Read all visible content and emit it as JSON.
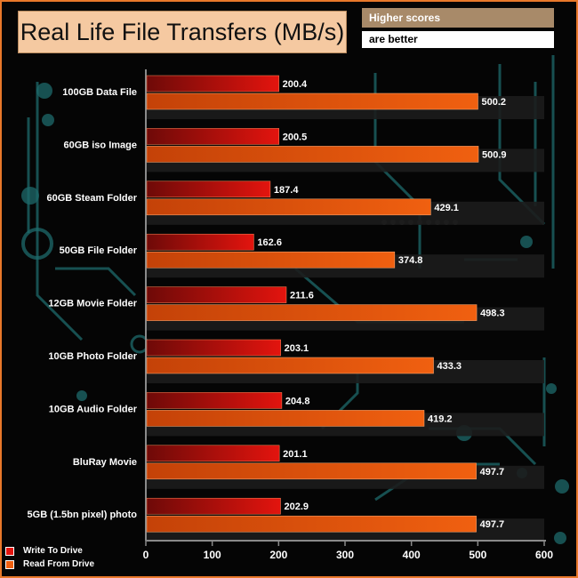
{
  "header": {
    "title": "Real Life File Transfers (MB/s)",
    "note_line1": "Higher scores",
    "note_line2": "are better"
  },
  "colors": {
    "write": "#e3140e",
    "read": "#f06010",
    "frame": "#e8782a",
    "circuit": "#1f6f70"
  },
  "chart_data": {
    "type": "bar",
    "orientation": "horizontal",
    "title": "Real Life File Transfers (MB/s)",
    "categories": [
      "100GB Data File",
      "60GB iso Image",
      "60GB Steam Folder",
      "50GB File Folder",
      "12GB Movie Folder",
      "10GB Photo Folder",
      "10GB Audio Folder",
      "BluRay Movie",
      "5GB (1.5bn pixel) photo"
    ],
    "series": [
      {
        "name": "Write To  Drive",
        "values": [
          200.4,
          200.5,
          187.4,
          162.6,
          211.6,
          203.1,
          204.8,
          201.1,
          202.9
        ]
      },
      {
        "name": "Read From  Drive",
        "values": [
          500.2,
          500.9,
          429.1,
          374.8,
          498.3,
          433.3,
          419.2,
          497.7,
          497.7
        ]
      }
    ],
    "xlim": [
      0,
      600
    ],
    "xticks": [
      0,
      100,
      200,
      300,
      400,
      500,
      600
    ],
    "legend_position": "bottom-left",
    "grid": false
  }
}
